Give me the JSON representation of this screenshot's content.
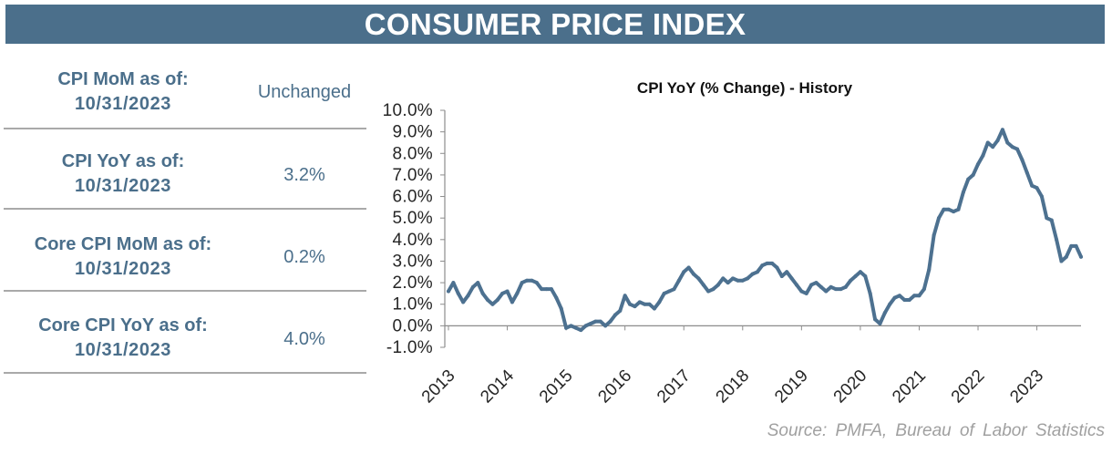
{
  "header": {
    "title": "CONSUMER PRICE INDEX"
  },
  "stats": [
    {
      "label": "CPI MoM as of:",
      "date": "10/31/2023",
      "value": "Unchanged"
    },
    {
      "label": "CPI YoY as of:",
      "date": "10/31/2023",
      "value": "3.2%"
    },
    {
      "label": "Core CPI MoM as of:",
      "date": "10/31/2023",
      "value": "0.2%"
    },
    {
      "label": "Core CPI YoY as of:",
      "date": "10/31/2023",
      "value": "4.0%"
    }
  ],
  "source": "Source: PMFA, Bureau of Labor Statistics",
  "colors": {
    "header_bg": "#4b6f8b",
    "label_text": "#4b6f8b",
    "line": "#4d7190",
    "axis": "#8c8c8c",
    "source_text": "#a0a0a0"
  },
  "chart_data": {
    "type": "line",
    "title": "CPI YoY (% Change) - History",
    "xlabel": "",
    "ylabel": "",
    "ylim": [
      -1,
      10
    ],
    "grid": false,
    "legend": "none",
    "x_tick_labels": [
      "2013",
      "2014",
      "2015",
      "2016",
      "2017",
      "2018",
      "2019",
      "2020",
      "2021",
      "2022",
      "2023"
    ],
    "y_tick_labels": [
      "10.0%",
      "9.0%",
      "8.0%",
      "7.0%",
      "6.0%",
      "5.0%",
      "4.0%",
      "3.0%",
      "2.0%",
      "1.0%",
      "0.0%",
      "-1.0%"
    ],
    "x": [
      "2013-01",
      "2013-02",
      "2013-03",
      "2013-04",
      "2013-05",
      "2013-06",
      "2013-07",
      "2013-08",
      "2013-09",
      "2013-10",
      "2013-11",
      "2013-12",
      "2014-01",
      "2014-02",
      "2014-03",
      "2014-04",
      "2014-05",
      "2014-06",
      "2014-07",
      "2014-08",
      "2014-09",
      "2014-10",
      "2014-11",
      "2014-12",
      "2015-01",
      "2015-02",
      "2015-03",
      "2015-04",
      "2015-05",
      "2015-06",
      "2015-07",
      "2015-08",
      "2015-09",
      "2015-10",
      "2015-11",
      "2015-12",
      "2016-01",
      "2016-02",
      "2016-03",
      "2016-04",
      "2016-05",
      "2016-06",
      "2016-07",
      "2016-08",
      "2016-09",
      "2016-10",
      "2016-11",
      "2016-12",
      "2017-01",
      "2017-02",
      "2017-03",
      "2017-04",
      "2017-05",
      "2017-06",
      "2017-07",
      "2017-08",
      "2017-09",
      "2017-10",
      "2017-11",
      "2017-12",
      "2018-01",
      "2018-02",
      "2018-03",
      "2018-04",
      "2018-05",
      "2018-06",
      "2018-07",
      "2018-08",
      "2018-09",
      "2018-10",
      "2018-11",
      "2018-12",
      "2019-01",
      "2019-02",
      "2019-03",
      "2019-04",
      "2019-05",
      "2019-06",
      "2019-07",
      "2019-08",
      "2019-09",
      "2019-10",
      "2019-11",
      "2019-12",
      "2020-01",
      "2020-02",
      "2020-03",
      "2020-04",
      "2020-05",
      "2020-06",
      "2020-07",
      "2020-08",
      "2020-09",
      "2020-10",
      "2020-11",
      "2020-12",
      "2021-01",
      "2021-02",
      "2021-03",
      "2021-04",
      "2021-05",
      "2021-06",
      "2021-07",
      "2021-08",
      "2021-09",
      "2021-10",
      "2021-11",
      "2021-12",
      "2022-01",
      "2022-02",
      "2022-03",
      "2022-04",
      "2022-05",
      "2022-06",
      "2022-07",
      "2022-08",
      "2022-09",
      "2022-10",
      "2022-11",
      "2022-12",
      "2023-01",
      "2023-02",
      "2023-03",
      "2023-04",
      "2023-05",
      "2023-06",
      "2023-07",
      "2023-08",
      "2023-09",
      "2023-10"
    ],
    "series": [
      {
        "values": [
          1.6,
          2.0,
          1.5,
          1.1,
          1.4,
          1.8,
          2.0,
          1.5,
          1.2,
          1.0,
          1.2,
          1.5,
          1.6,
          1.1,
          1.5,
          2.0,
          2.1,
          2.1,
          2.0,
          1.7,
          1.7,
          1.7,
          1.3,
          0.8,
          -0.1,
          0.0,
          -0.1,
          -0.2,
          0.0,
          0.1,
          0.2,
          0.2,
          0.0,
          0.2,
          0.5,
          0.7,
          1.4,
          1.0,
          0.9,
          1.1,
          1.0,
          1.0,
          0.8,
          1.1,
          1.5,
          1.6,
          1.7,
          2.1,
          2.5,
          2.7,
          2.4,
          2.2,
          1.9,
          1.6,
          1.7,
          1.9,
          2.2,
          2.0,
          2.2,
          2.1,
          2.1,
          2.2,
          2.4,
          2.5,
          2.8,
          2.9,
          2.9,
          2.7,
          2.3,
          2.5,
          2.2,
          1.9,
          1.6,
          1.5,
          1.9,
          2.0,
          1.8,
          1.6,
          1.8,
          1.7,
          1.7,
          1.8,
          2.1,
          2.3,
          2.5,
          2.3,
          1.5,
          0.3,
          0.1,
          0.6,
          1.0,
          1.3,
          1.4,
          1.2,
          1.2,
          1.4,
          1.4,
          1.7,
          2.6,
          4.2,
          5.0,
          5.4,
          5.4,
          5.3,
          5.4,
          6.2,
          6.8,
          7.0,
          7.5,
          7.9,
          8.5,
          8.3,
          8.6,
          9.1,
          8.5,
          8.3,
          8.2,
          7.7,
          7.1,
          6.5,
          6.4,
          6.0,
          5.0,
          4.9,
          4.0,
          3.0,
          3.2,
          3.7,
          3.7,
          3.2
        ]
      }
    ]
  }
}
